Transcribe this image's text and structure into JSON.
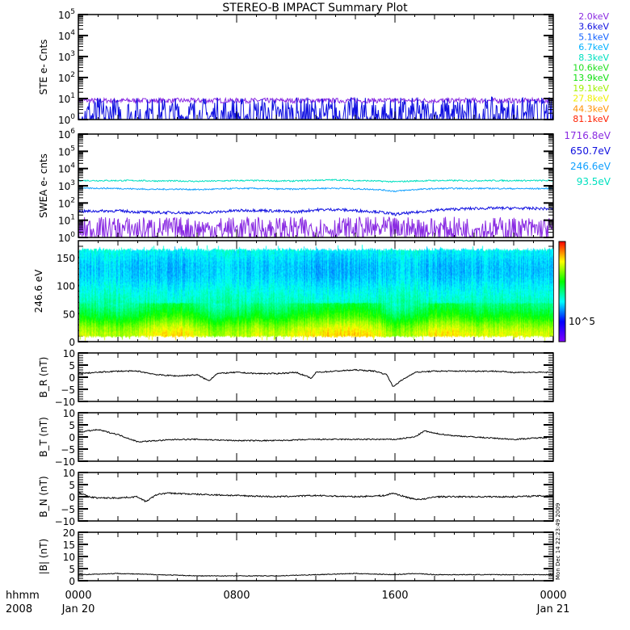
{
  "title": "STEREO-B IMPACT Summary Plot",
  "timestamp": "Mon Dec 14 22:23:49 2009",
  "x_axis": {
    "label_line1": "hhmm",
    "label_line2": "2008",
    "ticks": [
      {
        "hour": 0,
        "time": "0000",
        "date": "Jan 20"
      },
      {
        "hour": 8,
        "time": "0800",
        "date": ""
      },
      {
        "hour": 16,
        "time": "1600",
        "date": ""
      },
      {
        "hour": 24,
        "time": "0000",
        "date": "Jan 21"
      }
    ]
  },
  "legend_ste": [
    {
      "label": "2.0keV",
      "color": "#8a2be2"
    },
    {
      "label": "3.6keV",
      "color": "#1010e0"
    },
    {
      "label": "5.1keV",
      "color": "#1060ff"
    },
    {
      "label": "6.7keV",
      "color": "#00b0ff"
    },
    {
      "label": "8.3keV",
      "color": "#00e0c0"
    },
    {
      "label": "10.6keV",
      "color": "#20e020"
    },
    {
      "label": "13.9keV",
      "color": "#10e010"
    },
    {
      "label": "19.1keV",
      "color": "#a0f000"
    },
    {
      "label": "27.8keV",
      "color": "#f0f000"
    },
    {
      "label": "44.3keV",
      "color": "#ff9000"
    },
    {
      "label": "81.1keV",
      "color": "#ff2000"
    }
  ],
  "legend_swea": [
    {
      "label": "1716.8eV",
      "color": "#8a2be2"
    },
    {
      "label": "650.7eV",
      "color": "#1010e0"
    },
    {
      "label": "246.6eV",
      "color": "#10a0ff"
    },
    {
      "label": "93.5eV",
      "color": "#00e0c0"
    }
  ],
  "colorbar_label": "10^5",
  "chart_data": [
    {
      "id": "ste",
      "type": "line",
      "ylabel": "STE e- Cnts",
      "yscale": "log",
      "ylim": [
        1,
        100000
      ],
      "yticks": [
        "10^0",
        "10^1",
        "10^2",
        "10^3",
        "10^4",
        "10^5"
      ],
      "x_hours": [
        0,
        1,
        2,
        3,
        4,
        5,
        6,
        7,
        8,
        9,
        10,
        11,
        12,
        13,
        14,
        15,
        16,
        17,
        18,
        19,
        20,
        21,
        22,
        23,
        24
      ],
      "series": [
        {
          "name": "2.0keV",
          "color": "#8a2be2",
          "noise": 0.12,
          "values": [
            8,
            8,
            8,
            8,
            8,
            8,
            8,
            8,
            8,
            8,
            8,
            8,
            8,
            8,
            8,
            8,
            8,
            8,
            8,
            8,
            8,
            8,
            8,
            8,
            8
          ]
        },
        {
          "name": "3.6keV",
          "color": "#1010e0",
          "noise": 0.6,
          "values": [
            1.3,
            1.3,
            1.3,
            1.3,
            1.3,
            1.3,
            1.3,
            1.3,
            1.3,
            1.3,
            1.3,
            1.3,
            1.3,
            1.3,
            1.3,
            1.3,
            1.3,
            1.3,
            1.3,
            1.3,
            1.3,
            1.3,
            1.3,
            1.3,
            1.3
          ]
        }
      ]
    },
    {
      "id": "swea",
      "type": "line",
      "ylabel": "SWEA e- cnts",
      "yscale": "log",
      "ylim": [
        1,
        1000000
      ],
      "yticks": [
        "10^0",
        "10^1",
        "10^2",
        "10^3",
        "10^4",
        "10^5",
        "10^6"
      ],
      "x_hours": [
        0,
        1,
        2,
        3,
        4,
        5,
        6,
        7,
        8,
        9,
        10,
        11,
        12,
        13,
        14,
        15,
        16,
        17,
        18,
        19,
        20,
        21,
        22,
        23,
        24
      ],
      "series": [
        {
          "name": "93.5eV",
          "color": "#00e0c0",
          "noise": 0.04,
          "values": [
            2000,
            2000,
            2000,
            2000,
            1900,
            1900,
            1800,
            1900,
            2000,
            2000,
            1900,
            1900,
            2100,
            2200,
            2000,
            1900,
            1700,
            1900,
            2000,
            2000,
            2000,
            2000,
            2000,
            2000,
            2000
          ]
        },
        {
          "name": "246.6eV",
          "color": "#10a0ff",
          "noise": 0.04,
          "values": [
            700,
            720,
            700,
            650,
            620,
            640,
            600,
            640,
            700,
            700,
            650,
            640,
            700,
            720,
            660,
            620,
            480,
            600,
            680,
            700,
            700,
            700,
            680,
            680,
            700
          ]
        },
        {
          "name": "650.7eV",
          "color": "#1010e0",
          "noise": 0.08,
          "values": [
            32,
            34,
            35,
            30,
            28,
            28,
            26,
            30,
            36,
            38,
            34,
            30,
            40,
            42,
            36,
            32,
            22,
            28,
            38,
            44,
            48,
            50,
            50,
            48,
            46
          ]
        },
        {
          "name": "1716.8eV",
          "color": "#8a2be2",
          "noise": 0.45,
          "values": [
            3,
            3,
            3,
            3,
            3,
            3,
            3,
            3,
            3,
            3,
            3,
            3,
            3,
            3,
            3,
            3,
            3,
            3,
            3,
            3,
            3,
            3,
            3,
            3,
            3
          ]
        }
      ]
    },
    {
      "id": "spectrogram",
      "type": "heatmap",
      "ylabel": "246.6 eV",
      "ylim": [
        0,
        180
      ],
      "yticks": [
        "0",
        "50",
        "100",
        "150"
      ],
      "ytick_values": [
        0,
        50,
        100,
        150
      ],
      "pitch_bins": [
        15,
        25,
        35,
        45,
        55,
        65,
        75,
        85,
        95,
        105,
        115,
        125,
        135,
        145,
        155,
        165
      ],
      "x_hours": [
        0,
        1,
        2,
        3,
        4,
        5,
        6,
        7,
        8,
        9,
        10,
        11,
        12,
        13,
        14,
        15,
        16,
        17,
        18,
        19,
        20,
        21,
        22,
        23,
        24
      ],
      "level_by_pitch": [
        0.74,
        0.7,
        0.64,
        0.57,
        0.52,
        0.48,
        0.46,
        0.44,
        0.42,
        0.4,
        0.38,
        0.37,
        0.37,
        0.38,
        0.4,
        0.42
      ],
      "time_modulation": [
        0.02,
        0.0,
        -0.01,
        0.02,
        0.04,
        0.06,
        0.02,
        -0.02,
        0.0,
        0.02,
        0.0,
        0.03,
        0.05,
        0.06,
        0.06,
        0.04,
        -0.02,
        0.0,
        0.05,
        0.05,
        0.02,
        0.02,
        0.03,
        0.02,
        0.02
      ],
      "colorscale": "rainbow"
    },
    {
      "id": "br",
      "type": "line",
      "ylabel": "B_R (nT)",
      "ylim": [
        -10,
        10
      ],
      "yticks": [
        "-10",
        "-5",
        "0",
        "5",
        "10"
      ],
      "ytick_values": [
        -10,
        -5,
        0,
        5,
        10
      ],
      "x_hours": [
        0,
        1,
        2,
        3,
        4,
        5,
        6,
        6.6,
        7,
        8,
        9,
        10,
        11,
        11.8,
        12,
        13,
        14,
        15,
        15.6,
        15.9,
        16.2,
        17,
        18,
        19,
        20,
        21,
        22,
        23,
        24
      ],
      "series": [
        {
          "name": "BR",
          "color": "#000000",
          "noise": 0.25,
          "values": [
            1.5,
            2,
            2.5,
            2.5,
            1,
            0.5,
            1,
            -1.5,
            1.5,
            2,
            1.5,
            1.5,
            2,
            -0.5,
            2,
            2.5,
            3,
            2.5,
            1,
            -4,
            -2,
            2,
            2.5,
            2.5,
            2.5,
            2.5,
            2,
            2,
            2
          ]
        }
      ]
    },
    {
      "id": "bt",
      "type": "line",
      "ylabel": "B_T (nT)",
      "ylim": [
        -10,
        10
      ],
      "yticks": [
        "-10",
        "-5",
        "0",
        "5",
        "10"
      ],
      "ytick_values": [
        -10,
        -5,
        0,
        5,
        10
      ],
      "x_hours": [
        0,
        1,
        2,
        3,
        4,
        5,
        6,
        8,
        10,
        12,
        14,
        16,
        17,
        17.5,
        18,
        19,
        20,
        21,
        22,
        23,
        24
      ],
      "series": [
        {
          "name": "BT",
          "color": "#000000",
          "noise": 0.25,
          "values": [
            2,
            3,
            1,
            -2,
            -1.5,
            -1,
            -1,
            -1.5,
            -1.5,
            -1,
            -1,
            -1,
            0,
            2.5,
            1.5,
            0.5,
            0,
            -0.5,
            -1,
            -0.5,
            0
          ]
        }
      ]
    },
    {
      "id": "bn",
      "type": "line",
      "ylabel": "B_N (nT)",
      "ylim": [
        -10,
        10
      ],
      "yticks": [
        "-10",
        "-5",
        "0",
        "5",
        "10"
      ],
      "ytick_values": [
        -10,
        -5,
        0,
        5,
        10
      ],
      "x_hours": [
        0,
        0.5,
        1,
        2,
        3,
        3.4,
        4,
        4.5,
        6,
        8,
        10,
        12,
        14,
        15.5,
        15.9,
        16.5,
        17,
        17.5,
        18,
        20,
        22,
        24
      ],
      "series": [
        {
          "name": "BN",
          "color": "#000000",
          "noise": 0.3,
          "values": [
            2,
            0,
            -0.5,
            -0.5,
            0,
            -2,
            1,
            1.5,
            1,
            0.5,
            0,
            0.5,
            0,
            0.5,
            1.5,
            0,
            -1,
            -1,
            0,
            0,
            0,
            0.5
          ]
        }
      ]
    },
    {
      "id": "bmag",
      "type": "line",
      "ylabel": "|B| (nT)",
      "ylim": [
        0,
        20
      ],
      "yticks": [
        "0",
        "5",
        "10",
        "15",
        "20"
      ],
      "ytick_values": [
        0,
        5,
        10,
        15,
        20
      ],
      "x_hours": [
        0,
        2,
        4,
        6,
        8,
        10,
        12,
        14,
        16,
        17,
        18,
        20,
        22,
        24
      ],
      "series": [
        {
          "name": "|B|",
          "color": "#000000",
          "noise": 0.15,
          "values": [
            2.5,
            3,
            2.5,
            2,
            2,
            2,
            2.5,
            3,
            2.5,
            3,
            2.5,
            2.5,
            2.5,
            2.5
          ]
        }
      ]
    }
  ]
}
